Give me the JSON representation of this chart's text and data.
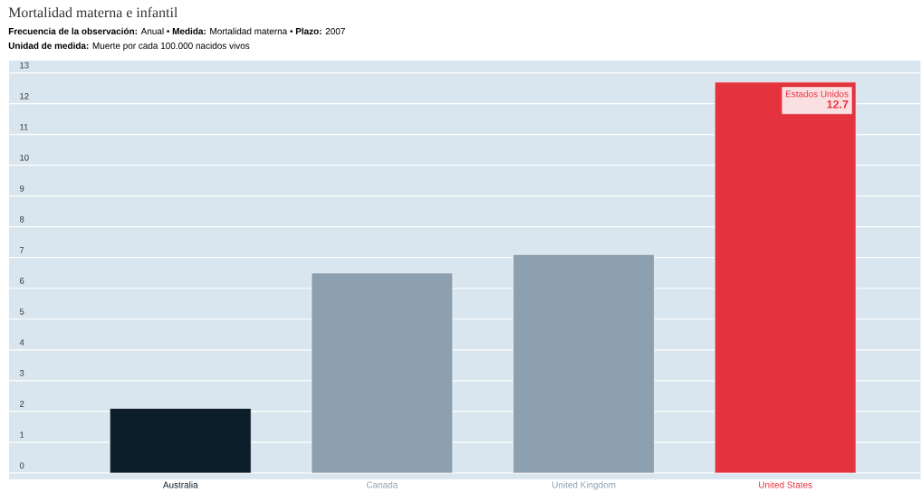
{
  "chart_data": {
    "type": "bar",
    "title": "Mortalidad materna e infantil",
    "subtitle": "**Frecuencia de la observación:** Anual • **Medida:** Mortalidad materna • **Plazo:** 2007",
    "annotations": [
      "**Unidad de medida:** Muerte por cada 100.000 nacidos vivos",
      {
        "text": "Estados Unidos",
        "x": "United States",
        "y": 12.7
      }
    ],
    "categories": [
      "Australia",
      "Canada",
      "United Kingdom",
      "United States"
    ],
    "values": [
      2.1,
      6.5,
      7.1,
      12.7
    ],
    "colors": [
      "#0d1e2b",
      "#8ca0b0",
      "#8ca0b0",
      "#e2333f"
    ],
    "value_labels": [
      null,
      null,
      null,
      "12.7"
    ],
    "ylim": [
      -0.2,
      13.4
    ],
    "yticks": [
      0,
      1,
      2,
      3,
      4,
      5,
      6,
      7,
      8,
      9,
      10,
      11,
      12,
      13
    ],
    "grid": "y"
  }
}
